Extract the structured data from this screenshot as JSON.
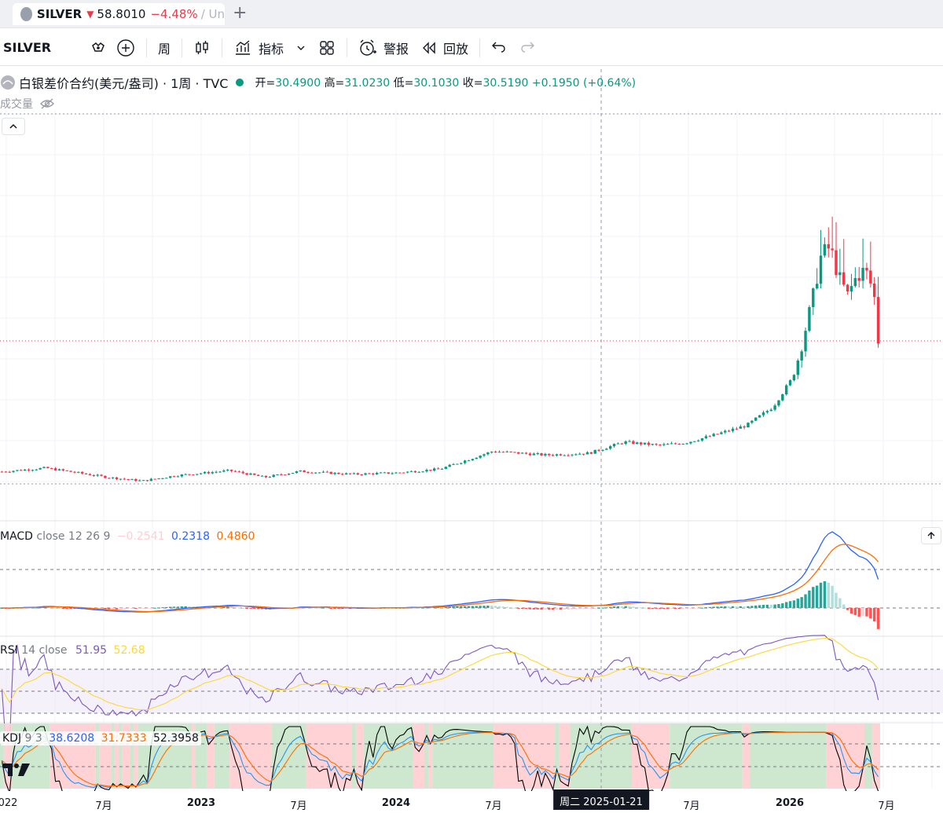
{
  "tab": {
    "symbol": "SILVER",
    "price": "58.8010",
    "change": "−4.48%",
    "rest": "/ Un",
    "new_tab": "+"
  },
  "toolbar": {
    "symbol": "SILVER",
    "interval": "周",
    "indicators": "指标",
    "alert": "警报",
    "replay": "回放"
  },
  "legend": {
    "title": "白银差价合约(美元/盎司) · 1周 · TVC",
    "open_label": "开=",
    "open": "30.4900",
    "high_label": "高=",
    "high": "31.0230",
    "low_label": "低=",
    "low": "30.1030",
    "close_label": "收=",
    "close": "30.5190",
    "change": "+0.1950 (+0.64%)",
    "volume_label": "成交量"
  },
  "macd": {
    "name": "MACD",
    "params": "close 12 26 9",
    "v1": "−0.2541",
    "v2": "0.2318",
    "v3": "0.4860"
  },
  "rsi": {
    "name": "RSI",
    "params": "14 close",
    "v1": "51.95",
    "v2": "52.68"
  },
  "kdj": {
    "name": "KDJ",
    "params": "9 3",
    "k": "38.6208",
    "d": "31.7333",
    "j": "52.3958"
  },
  "xaxis": {
    "labels": [
      "022",
      "7月",
      "2023",
      "7月",
      "2024",
      "7月",
      "7月",
      "2026",
      "7月"
    ],
    "crosshair": "周二 2025-01-21"
  },
  "colors": {
    "up": "#089981",
    "down": "#f23645",
    "macd_line": "#2962ff",
    "signal_line": "#ff6d00",
    "rsi_line": "#7e57c2",
    "rsi_ma": "#fdd835",
    "rsi_band": "#ede7f6",
    "kdj_k": "#000000",
    "kdj_d": "#2196f3",
    "kdj_j": "#ff6d00",
    "kdj_bg_up": "#c8e6c9",
    "kdj_bg_down": "#ffcdd2"
  },
  "chart_data": {
    "type": "candlestick",
    "interval": "1W",
    "x_start": "2022-03",
    "x_end": "2026-06",
    "ylim": [
      20,
      120
    ],
    "price_path": [
      [
        0.0,
        23.5
      ],
      [
        0.05,
        24.5
      ],
      [
        0.12,
        22.0
      ],
      [
        0.16,
        21.0
      ],
      [
        0.2,
        22.5
      ],
      [
        0.26,
        23.8
      ],
      [
        0.3,
        22.0
      ],
      [
        0.34,
        23.6
      ],
      [
        0.4,
        22.8
      ],
      [
        0.45,
        23.2
      ],
      [
        0.5,
        24.2
      ],
      [
        0.56,
        29.0
      ],
      [
        0.62,
        28.0
      ],
      [
        0.67,
        28.5
      ],
      [
        0.71,
        31.5
      ],
      [
        0.75,
        30.6
      ],
      [
        0.78,
        31.3
      ],
      [
        0.81,
        33.2
      ],
      [
        0.85,
        36.0
      ],
      [
        0.88,
        41.0
      ],
      [
        0.9,
        48.0
      ],
      [
        0.91,
        55.0
      ],
      [
        0.925,
        70.0
      ],
      [
        0.935,
        82.0
      ],
      [
        0.945,
        84.0
      ],
      [
        0.955,
        76.0
      ],
      [
        0.965,
        71.0
      ],
      [
        0.975,
        76.0
      ],
      [
        0.985,
        78.0
      ],
      [
        0.995,
        72.0
      ],
      [
        1.0,
        58.8
      ]
    ],
    "last_price": 58.801,
    "crosshair_date": "2025-01-21",
    "macd_summary": "flat near zero through 2025, rising peak early 2026, now negative histogram",
    "rsi_range": [
      30,
      85
    ],
    "kdj_range": [
      0,
      100
    ]
  }
}
